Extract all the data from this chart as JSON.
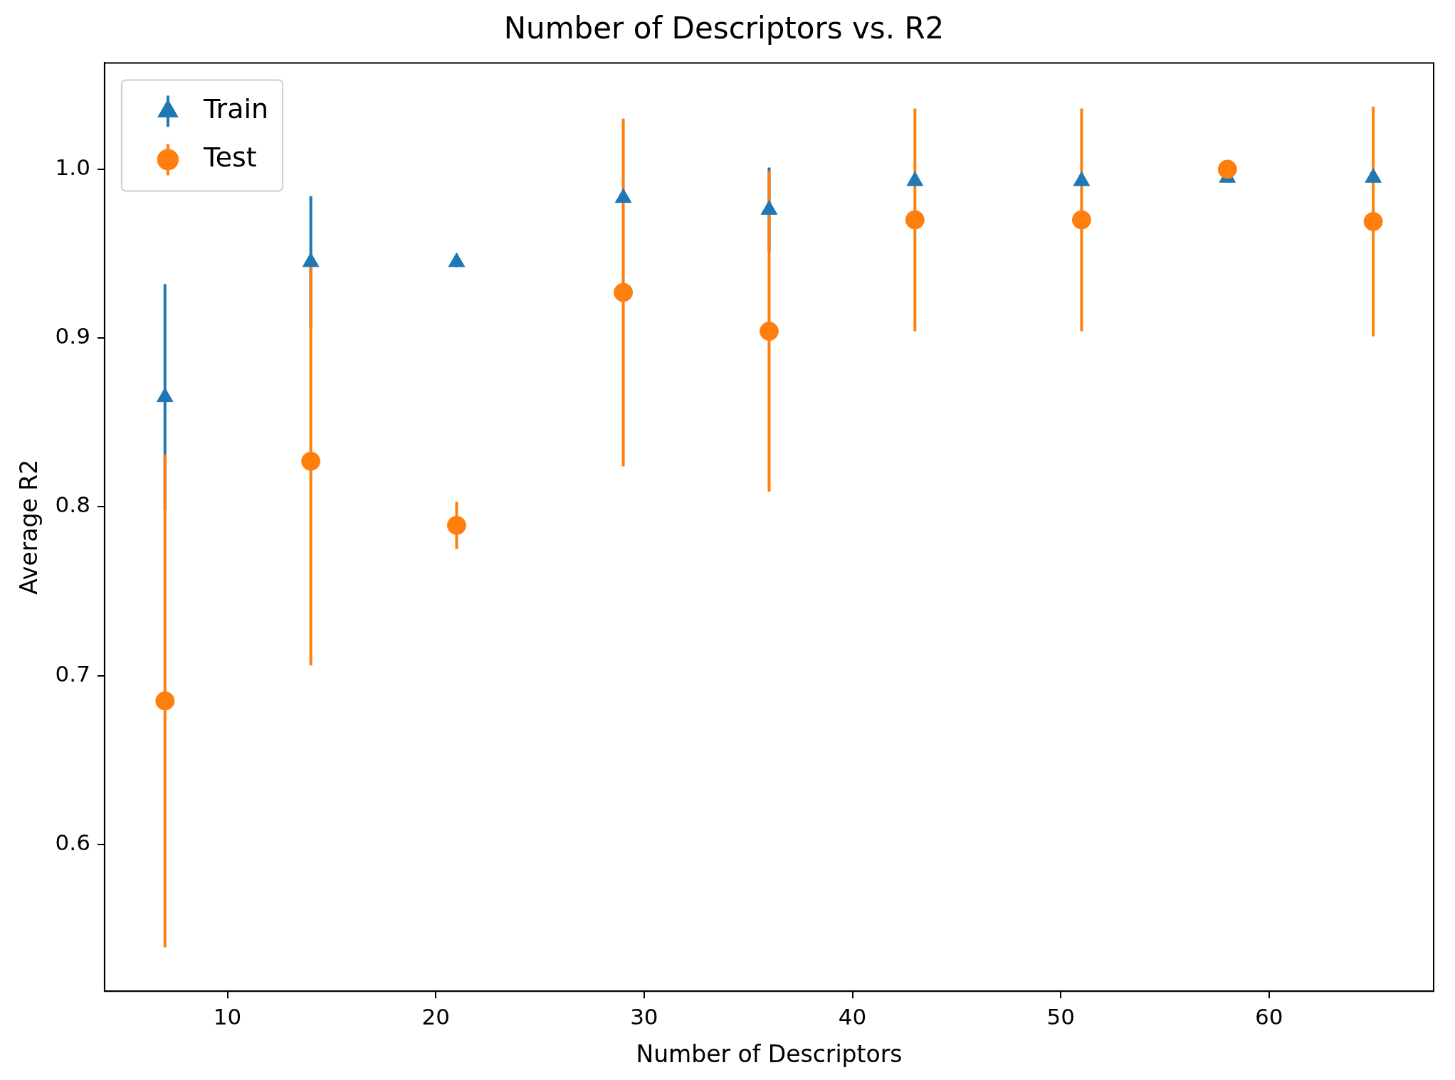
{
  "chart_data": {
    "type": "scatter",
    "title": "Number of Descriptors vs. R2",
    "xlabel": "Number of Descriptors",
    "ylabel": "Average R2",
    "x": [
      7,
      14,
      21,
      29,
      36,
      43,
      51,
      58,
      65
    ],
    "series": [
      {
        "name": "Train",
        "color": "#1f77b4",
        "marker": "triangle",
        "values": [
          0.865,
          0.945,
          0.945,
          0.983,
          0.976,
          0.993,
          0.993,
          0.995,
          0.995
        ],
        "errors": [
          0.067,
          0.039,
          0.003,
          null,
          0.025,
          null,
          null,
          null,
          null
        ]
      },
      {
        "name": "Test",
        "color": "#ff7f0e",
        "marker": "circle",
        "values": [
          0.685,
          0.827,
          0.789,
          0.927,
          0.904,
          0.97,
          0.97,
          1.0,
          0.969
        ],
        "errors": [
          0.146,
          0.121,
          0.014,
          0.103,
          0.095,
          0.066,
          0.066,
          null,
          0.068
        ]
      }
    ],
    "xlim": [
      4.1,
      67.9
    ],
    "xticks": [
      10,
      20,
      30,
      40,
      50,
      60
    ],
    "ylim": [
      0.513,
      1.063
    ],
    "yticks": [
      0.6,
      0.7,
      0.8,
      0.9,
      {
        "value": 1,
        "label": "1.0"
      }
    ],
    "grid": false,
    "legend": "top left"
  }
}
